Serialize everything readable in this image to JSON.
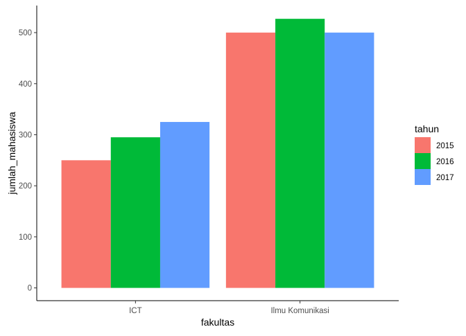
{
  "chart_data": {
    "type": "bar",
    "categories": [
      "ICT",
      "Ilmu Komunikasi"
    ],
    "series": [
      {
        "name": "2015",
        "values": [
          250,
          500
        ],
        "color": "#F8766D"
      },
      {
        "name": "2016",
        "values": [
          295,
          527
        ],
        "color": "#00BA38"
      },
      {
        "name": "2017",
        "values": [
          325,
          500
        ],
        "color": "#619CFF"
      }
    ],
    "xlabel": "fakultas",
    "ylabel": "jumlah_mahasiswa",
    "ylim": [
      -25,
      553
    ],
    "yticks": [
      0,
      100,
      200,
      300,
      400,
      500
    ],
    "grid": false,
    "legend": {
      "title": "tahun",
      "placement": "right"
    }
  }
}
